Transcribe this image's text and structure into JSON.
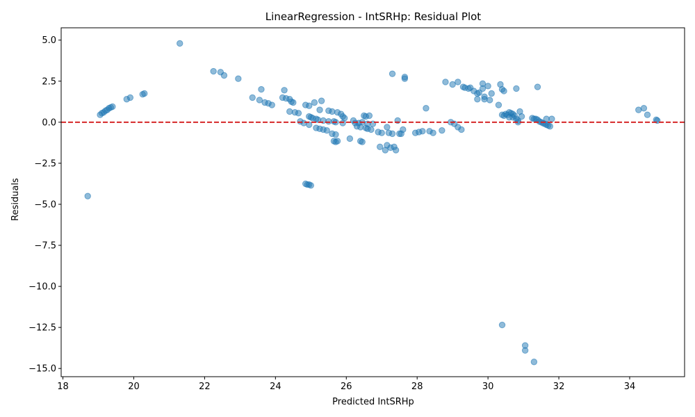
{
  "chart_data": {
    "type": "scatter",
    "title": "LinearRegression - IntSRHp: Residual Plot",
    "xlabel": "Predicted IntSRHp",
    "ylabel": "Residuals",
    "xlim": [
      17.95,
      35.55
    ],
    "ylim": [
      -15.5,
      5.75
    ],
    "x_ticks": [
      18,
      20,
      22,
      24,
      26,
      28,
      30,
      32,
      34
    ],
    "y_ticks": [
      5.0,
      2.5,
      0.0,
      -2.5,
      -5.0,
      -7.5,
      -10.0,
      -12.5,
      -15.0
    ],
    "x_tick_labels": [
      "18",
      "20",
      "22",
      "24",
      "26",
      "28",
      "30",
      "32",
      "34"
    ],
    "y_tick_labels": [
      "5.0",
      "2.5",
      "0.0",
      "−2.5",
      "−5.0",
      "−7.5",
      "−10.0",
      "−12.5",
      "−15.0"
    ],
    "grid": false,
    "point_color": "#1f77b4",
    "reference_line": {
      "y": 0,
      "color": "#d62728",
      "style": "dashed"
    },
    "points": [
      [
        18.7,
        -4.5
      ],
      [
        19.05,
        0.45
      ],
      [
        19.1,
        0.55
      ],
      [
        19.15,
        0.6
      ],
      [
        19.2,
        0.7
      ],
      [
        19.25,
        0.75
      ],
      [
        19.3,
        0.85
      ],
      [
        19.35,
        0.9
      ],
      [
        19.4,
        0.95
      ],
      [
        19.8,
        1.4
      ],
      [
        19.9,
        1.5
      ],
      [
        20.25,
        1.7
      ],
      [
        20.3,
        1.75
      ],
      [
        21.3,
        4.8
      ],
      [
        22.25,
        3.1
      ],
      [
        22.45,
        3.05
      ],
      [
        22.55,
        2.85
      ],
      [
        22.95,
        2.65
      ],
      [
        23.35,
        1.5
      ],
      [
        23.55,
        1.35
      ],
      [
        23.6,
        2.0
      ],
      [
        23.7,
        1.2
      ],
      [
        23.8,
        1.15
      ],
      [
        23.9,
        1.05
      ],
      [
        24.2,
        1.5
      ],
      [
        24.25,
        1.95
      ],
      [
        24.3,
        1.45
      ],
      [
        24.4,
        1.4
      ],
      [
        24.45,
        1.25
      ],
      [
        24.5,
        1.2
      ],
      [
        24.4,
        0.65
      ],
      [
        24.55,
        0.6
      ],
      [
        24.65,
        0.55
      ],
      [
        24.7,
        0.05
      ],
      [
        24.8,
        -0.05
      ],
      [
        24.85,
        1.05
      ],
      [
        24.95,
        1.0
      ],
      [
        24.95,
        0.35
      ],
      [
        25.0,
        0.3
      ],
      [
        25.05,
        0.25
      ],
      [
        25.1,
        1.2
      ],
      [
        25.15,
        0.2
      ],
      [
        25.2,
        0.15
      ],
      [
        25.25,
        0.75
      ],
      [
        25.3,
        1.3
      ],
      [
        25.35,
        0.1
      ],
      [
        25.5,
        0.05
      ],
      [
        24.95,
        -0.15
      ],
      [
        25.15,
        -0.35
      ],
      [
        25.25,
        -0.4
      ],
      [
        25.35,
        -0.45
      ],
      [
        25.45,
        -0.5
      ],
      [
        25.5,
        0.7
      ],
      [
        25.6,
        0.65
      ],
      [
        25.65,
        0.05
      ],
      [
        25.7,
        0.0
      ],
      [
        25.75,
        0.6
      ],
      [
        25.85,
        0.5
      ],
      [
        25.9,
        0.35
      ],
      [
        25.95,
        0.25
      ],
      [
        25.9,
        -0.05
      ],
      [
        25.6,
        -0.7
      ],
      [
        25.7,
        -0.75
      ],
      [
        25.65,
        -1.15
      ],
      [
        25.7,
        -1.2
      ],
      [
        25.75,
        -1.15
      ],
      [
        26.1,
        -1.0
      ],
      [
        26.2,
        0.1
      ],
      [
        26.25,
        -0.05
      ],
      [
        26.3,
        -0.25
      ],
      [
        26.35,
        -0.05
      ],
      [
        26.4,
        -0.3
      ],
      [
        26.45,
        0.0
      ],
      [
        26.5,
        0.4
      ],
      [
        26.55,
        0.35
      ],
      [
        26.6,
        -0.1
      ],
      [
        26.65,
        0.4
      ],
      [
        26.7,
        -0.45
      ],
      [
        26.75,
        -0.1
      ],
      [
        26.4,
        -1.15
      ],
      [
        26.45,
        -1.2
      ],
      [
        26.55,
        -0.35
      ],
      [
        26.6,
        -0.4
      ],
      [
        26.9,
        -0.6
      ],
      [
        26.95,
        -1.5
      ],
      [
        27.0,
        -0.65
      ],
      [
        27.1,
        -1.7
      ],
      [
        27.15,
        -1.4
      ],
      [
        27.15,
        -0.3
      ],
      [
        27.2,
        -0.65
      ],
      [
        27.25,
        -1.55
      ],
      [
        27.3,
        -0.7
      ],
      [
        27.3,
        2.95
      ],
      [
        27.35,
        -1.5
      ],
      [
        27.4,
        -1.7
      ],
      [
        27.45,
        0.1
      ],
      [
        27.5,
        -0.7
      ],
      [
        27.55,
        -0.7
      ],
      [
        27.6,
        -0.45
      ],
      [
        27.65,
        2.65
      ],
      [
        27.65,
        2.75
      ],
      [
        27.95,
        -0.65
      ],
      [
        28.05,
        -0.6
      ],
      [
        28.15,
        -0.55
      ],
      [
        28.25,
        0.85
      ],
      [
        28.35,
        -0.55
      ],
      [
        28.45,
        -0.65
      ],
      [
        28.7,
        -0.5
      ],
      [
        28.8,
        2.45
      ],
      [
        28.95,
        0.0
      ],
      [
        29.0,
        2.3
      ],
      [
        29.05,
        -0.1
      ],
      [
        29.15,
        -0.3
      ],
      [
        29.15,
        2.45
      ],
      [
        29.25,
        -0.45
      ],
      [
        29.3,
        2.15
      ],
      [
        29.35,
        2.1
      ],
      [
        29.45,
        2.05
      ],
      [
        29.5,
        2.1
      ],
      [
        29.6,
        1.9
      ],
      [
        29.7,
        1.4
      ],
      [
        29.7,
        1.75
      ],
      [
        29.75,
        1.8
      ],
      [
        29.85,
        2.35
      ],
      [
        29.85,
        2.05
      ],
      [
        29.9,
        1.55
      ],
      [
        29.9,
        1.4
      ],
      [
        30.0,
        2.2
      ],
      [
        30.05,
        1.35
      ],
      [
        30.1,
        1.75
      ],
      [
        30.3,
        1.05
      ],
      [
        30.35,
        2.3
      ],
      [
        30.4,
        2.0
      ],
      [
        30.45,
        1.9
      ],
      [
        30.4,
        0.45
      ],
      [
        30.45,
        0.4
      ],
      [
        30.5,
        0.5
      ],
      [
        30.55,
        0.45
      ],
      [
        30.6,
        0.6
      ],
      [
        30.65,
        0.55
      ],
      [
        30.7,
        0.5
      ],
      [
        30.7,
        0.3
      ],
      [
        30.75,
        0.4
      ],
      [
        30.8,
        0.2
      ],
      [
        30.85,
        0.1
      ],
      [
        30.6,
        0.3
      ],
      [
        30.8,
        2.05
      ],
      [
        30.85,
        0.0
      ],
      [
        30.9,
        0.65
      ],
      [
        30.95,
        0.35
      ],
      [
        30.4,
        -12.35
      ],
      [
        31.05,
        -13.6
      ],
      [
        31.05,
        -13.9
      ],
      [
        31.3,
        -14.6
      ],
      [
        31.25,
        0.25
      ],
      [
        31.3,
        0.2
      ],
      [
        31.35,
        0.2
      ],
      [
        31.4,
        0.15
      ],
      [
        31.45,
        0.05
      ],
      [
        31.5,
        0.0
      ],
      [
        31.55,
        -0.05
      ],
      [
        31.6,
        -0.1
      ],
      [
        31.65,
        -0.15
      ],
      [
        31.7,
        -0.2
      ],
      [
        31.75,
        -0.25
      ],
      [
        31.65,
        0.2
      ],
      [
        31.8,
        0.2
      ],
      [
        31.4,
        2.15
      ],
      [
        24.85,
        -3.75
      ],
      [
        24.9,
        -3.8
      ],
      [
        24.95,
        -3.8
      ],
      [
        25.0,
        -3.85
      ],
      [
        34.25,
        0.75
      ],
      [
        34.4,
        0.85
      ],
      [
        34.5,
        0.45
      ],
      [
        34.75,
        0.15
      ],
      [
        34.78,
        0.1
      ]
    ]
  }
}
